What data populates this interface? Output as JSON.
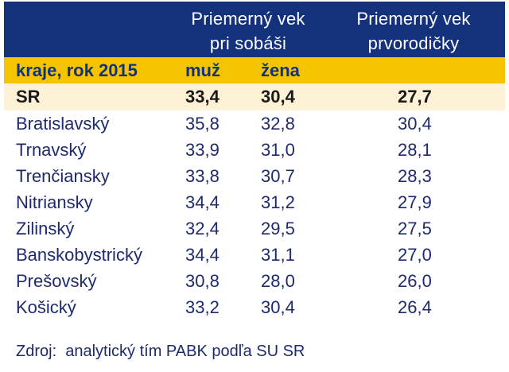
{
  "table": {
    "header": {
      "wedding_line1": "Priemerný vek",
      "wedding_line2": "pri sobáši",
      "first_line1": "Priemerný vek",
      "first_line2": "prvorodičky"
    },
    "subheader": {
      "region": "kraje, rok 2015",
      "male": "muž",
      "female": "žena"
    },
    "rows": [
      {
        "name": "SR",
        "male": "33,4",
        "female": "30,4",
        "first": "27,7"
      },
      {
        "name": "Bratislavský",
        "male": "35,8",
        "female": "32,8",
        "first": "30,4"
      },
      {
        "name": "Trnavský",
        "male": "33,9",
        "female": "31,0",
        "first": "28,1"
      },
      {
        "name": "Trenčiansky",
        "male": "33,8",
        "female": "30,7",
        "first": "28,3"
      },
      {
        "name": "Nitriansky",
        "male": "34,4",
        "female": "31,2",
        "first": "27,9"
      },
      {
        "name": "Zilinský",
        "male": "32,4",
        "female": "29,5",
        "first": "27,5"
      },
      {
        "name": "Banskobystrický",
        "male": "34,4",
        "female": "31,1",
        "first": "27,0"
      },
      {
        "name": "Prešovský",
        "male": "30,8",
        "female": "28,0",
        "first": "26,0"
      },
      {
        "name": "Košický",
        "male": "33,2",
        "female": "30,4",
        "first": "26,4"
      }
    ],
    "source": "Zdroj:  analytický tím PABK podľa SU SR"
  },
  "colors": {
    "header_bg": "#14317c",
    "subheader_bg": "#f5c400",
    "total_row_bg": "#fdf1d6",
    "text": "#1e2a6d"
  }
}
